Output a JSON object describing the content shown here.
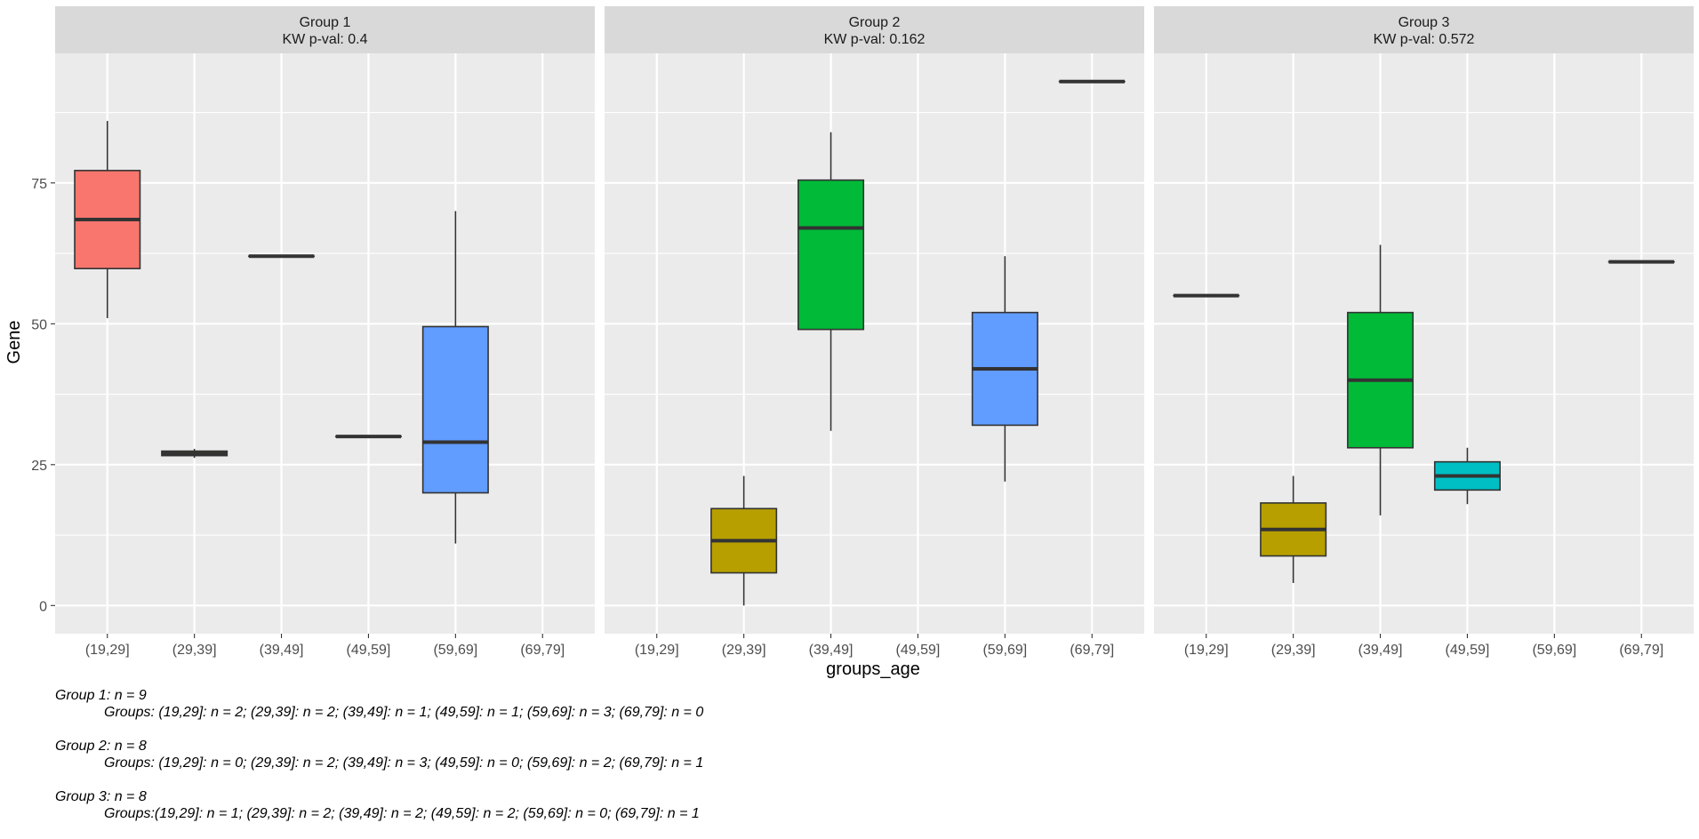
{
  "chart_data": {
    "type": "box",
    "xlabel": "groups_age",
    "ylabel": "Gene",
    "ylim": [
      -5,
      98
    ],
    "yticks": [
      0,
      25,
      50,
      75
    ],
    "categories": [
      "(19,29]",
      "(29,39]",
      "(39,49]",
      "(49,59]",
      "(59,69]",
      "(69,79]"
    ],
    "category_colors": [
      "#F8766D",
      "#B79F00",
      "#00BA38",
      "#00BFC4",
      "#619CFF",
      "#F564E3"
    ],
    "panel_background": "#EBEBEB",
    "strip_background": "#D9D9D9",
    "grid": true,
    "legend": "none",
    "panels": [
      {
        "strip_title": "Group 1",
        "strip_subtitle": "KW p-val: 0.4",
        "boxes": [
          {
            "category": "(19,29]",
            "lower_whisker": 51,
            "q1": 59.8,
            "median": 68.5,
            "q3": 77.2,
            "upper_whisker": 86
          },
          {
            "category": "(29,39]",
            "lower_whisker": 26.2,
            "q1": 26.6,
            "median": 27.0,
            "q3": 27.4,
            "upper_whisker": 27.8
          },
          {
            "category": "(39,49]",
            "lower_whisker": 62,
            "q1": 62,
            "median": 62,
            "q3": 62,
            "upper_whisker": 62
          },
          {
            "category": "(49,59]",
            "lower_whisker": 30,
            "q1": 30,
            "median": 30,
            "q3": 30,
            "upper_whisker": 30
          },
          {
            "category": "(59,69]",
            "lower_whisker": 11,
            "q1": 20,
            "median": 29,
            "q3": 49.5,
            "upper_whisker": 70
          }
        ]
      },
      {
        "strip_title": "Group 2",
        "strip_subtitle": "KW p-val: 0.162",
        "boxes": [
          {
            "category": "(29,39]",
            "lower_whisker": 0,
            "q1": 5.8,
            "median": 11.5,
            "q3": 17.2,
            "upper_whisker": 23
          },
          {
            "category": "(39,49]",
            "lower_whisker": 31,
            "q1": 49,
            "median": 67,
            "q3": 75.5,
            "upper_whisker": 84
          },
          {
            "category": "(59,69]",
            "lower_whisker": 22,
            "q1": 32,
            "median": 42,
            "q3": 52,
            "upper_whisker": 62
          },
          {
            "category": "(69,79]",
            "lower_whisker": 93,
            "q1": 93,
            "median": 93,
            "q3": 93,
            "upper_whisker": 93
          }
        ]
      },
      {
        "strip_title": "Group 3",
        "strip_subtitle": "KW p-val: 0.572",
        "boxes": [
          {
            "category": "(19,29]",
            "lower_whisker": 55,
            "q1": 55,
            "median": 55,
            "q3": 55,
            "upper_whisker": 55
          },
          {
            "category": "(29,39]",
            "lower_whisker": 4,
            "q1": 8.8,
            "median": 13.5,
            "q3": 18.2,
            "upper_whisker": 23
          },
          {
            "category": "(39,49]",
            "lower_whisker": 16,
            "q1": 28,
            "median": 40,
            "q3": 52,
            "upper_whisker": 64
          },
          {
            "category": "(49,59]",
            "lower_whisker": 18,
            "q1": 20.5,
            "median": 23,
            "q3": 25.5,
            "upper_whisker": 28
          },
          {
            "category": "(69,79]",
            "lower_whisker": 61,
            "q1": 61,
            "median": 61,
            "q3": 61,
            "upper_whisker": 61
          }
        ]
      }
    ]
  },
  "caption": [
    {
      "title": "Group 1: n = 9",
      "detail": "Groups: (19,29]: n =  2; (29,39]: n =  2; (39,49]: n =  1; (49,59]: n =  1; (59,69]: n =  3; (69,79]: n =  0"
    },
    {
      "title": "Group 2: n = 8",
      "detail": "Groups: (19,29]: n =  0; (29,39]: n =  2; (39,49]: n =  3; (49,59]: n =  0; (59,69]: n =  2; (69,79]: n =  1"
    },
    {
      "title": "Group 3: n = 8",
      "detail": "Groups:(19,29]: n =  1; (29,39]: n =  2; (39,49]: n =  2; (49,59]: n =  2; (59,69]: n =  0; (69,79]: n =  1"
    }
  ]
}
